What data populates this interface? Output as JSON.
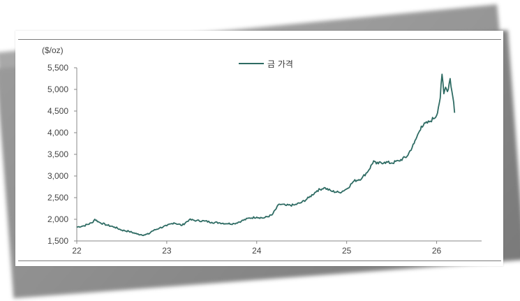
{
  "chart_data": {
    "type": "line",
    "ylabel": "($/oz)",
    "ylim": [
      1500,
      5500
    ],
    "yticks": [
      1500,
      2000,
      2500,
      3000,
      3500,
      4000,
      4500,
      5000,
      5500
    ],
    "ytick_labels": [
      "1,500",
      "2,000",
      "2,500",
      "3,000",
      "3,500",
      "4,000",
      "4,500",
      "5,000",
      "5,500"
    ],
    "xlim": [
      22,
      26.5
    ],
    "xticks": [
      22,
      23,
      24,
      25,
      26
    ],
    "xtick_labels": [
      "22",
      "23",
      "24",
      "25",
      "26"
    ],
    "grid": false,
    "legend_position": "top-center",
    "series": [
      {
        "name": "금 가격",
        "color": "#2e6b63",
        "x": [
          22.0,
          22.08,
          22.17,
          22.2,
          22.25,
          22.33,
          22.42,
          22.5,
          22.58,
          22.67,
          22.75,
          22.8,
          22.83,
          22.92,
          23.0,
          23.08,
          23.17,
          23.25,
          23.33,
          23.42,
          23.5,
          23.58,
          23.67,
          23.75,
          23.83,
          23.92,
          24.0,
          24.08,
          24.17,
          24.25,
          24.33,
          24.42,
          24.5,
          24.58,
          24.67,
          24.75,
          24.83,
          24.92,
          25.0,
          25.08,
          25.17,
          25.25,
          25.3,
          25.33,
          25.42,
          25.5,
          25.58,
          25.67,
          25.75,
          25.8,
          25.83,
          25.92,
          26.0,
          26.04,
          26.06,
          26.08,
          26.1,
          26.12,
          26.15,
          26.17,
          26.19,
          26.2
        ],
        "values": [
          1820,
          1850,
          1920,
          2000,
          1930,
          1870,
          1820,
          1750,
          1720,
          1660,
          1640,
          1660,
          1720,
          1800,
          1850,
          1920,
          1860,
          1990,
          1970,
          1960,
          1930,
          1920,
          1900,
          1900,
          1960,
          2030,
          2050,
          2030,
          2100,
          2350,
          2320,
          2330,
          2390,
          2500,
          2660,
          2730,
          2650,
          2620,
          2700,
          2880,
          2950,
          3150,
          3350,
          3280,
          3320,
          3300,
          3350,
          3450,
          3750,
          4000,
          4150,
          4250,
          4400,
          4800,
          5350,
          4900,
          5050,
          4950,
          5250,
          4950,
          4700,
          4460
        ]
      }
    ]
  }
}
